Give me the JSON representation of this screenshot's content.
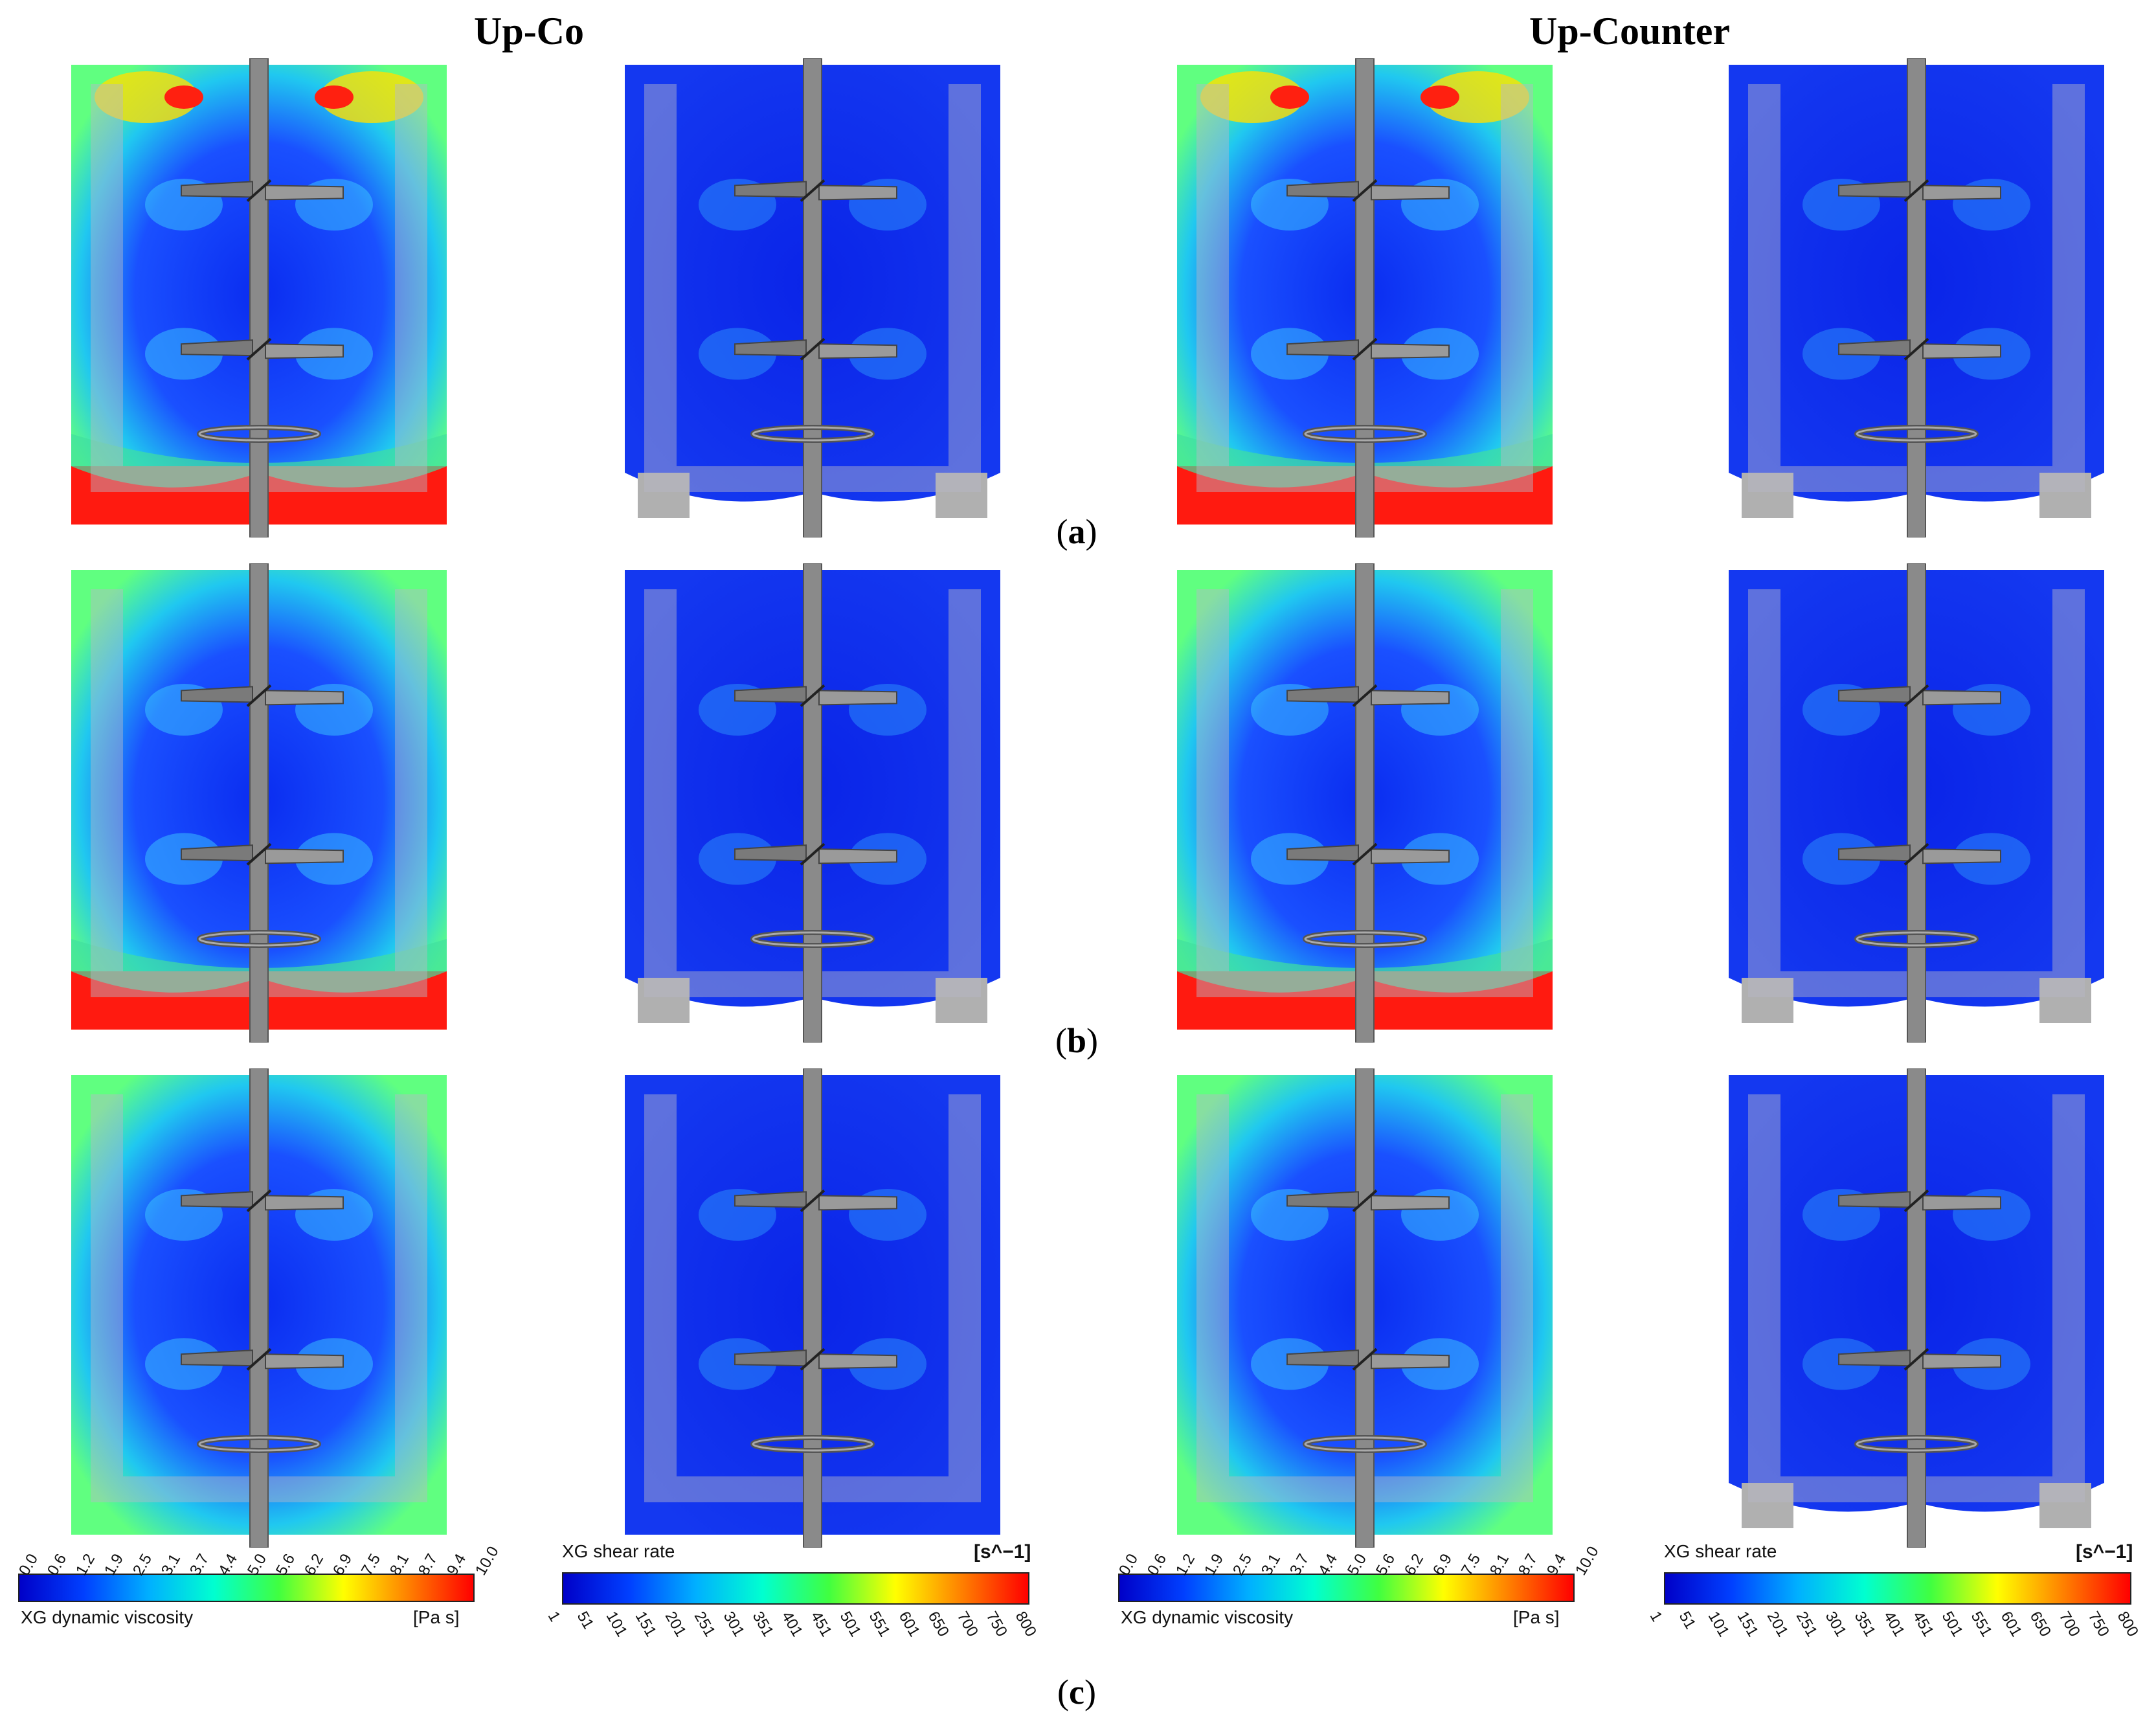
{
  "headers": {
    "left": "Up-Co",
    "right": "Up-Counter"
  },
  "row_labels": [
    "a",
    "b",
    "c"
  ],
  "panels": [
    {
      "row": "a",
      "col": 1,
      "field": "viscosity",
      "tank": "full"
    },
    {
      "row": "a",
      "col": 2,
      "field": "shear",
      "tank": "notched"
    },
    {
      "row": "a",
      "col": 3,
      "field": "viscosity",
      "tank": "full"
    },
    {
      "row": "a",
      "col": 4,
      "field": "shear",
      "tank": "notched"
    },
    {
      "row": "b",
      "col": 1,
      "field": "viscosity",
      "tank": "full"
    },
    {
      "row": "b",
      "col": 2,
      "field": "shear",
      "tank": "notched"
    },
    {
      "row": "b",
      "col": 3,
      "field": "viscosity",
      "tank": "full"
    },
    {
      "row": "b",
      "col": 4,
      "field": "shear",
      "tank": "notched"
    },
    {
      "row": "c",
      "col": 1,
      "field": "viscosity",
      "tank": "full"
    },
    {
      "row": "c",
      "col": 2,
      "field": "shear",
      "tank": "full"
    },
    {
      "row": "c",
      "col": 3,
      "field": "viscosity",
      "tank": "full"
    },
    {
      "row": "c",
      "col": 4,
      "field": "shear",
      "tank": "notched"
    }
  ],
  "colorbars": {
    "viscosity": {
      "title": "XG dynamic viscosity",
      "unit": "[Pa s]",
      "ticks": [
        "0.0",
        "0.6",
        "1.2",
        "1.9",
        "2.5",
        "3.1",
        "3.7",
        "4.4",
        "5.0",
        "5.6",
        "6.2",
        "6.9",
        "7.5",
        "8.1",
        "8.7",
        "9.4",
        "10.0"
      ]
    },
    "shear": {
      "title": "XG shear rate",
      "unit": "[s^−1]",
      "ticks": [
        "1",
        "51",
        "101",
        "151",
        "201",
        "251",
        "301",
        "351",
        "401",
        "451",
        "501",
        "551",
        "601",
        "650",
        "700",
        "750",
        "800"
      ]
    }
  },
  "colors": {
    "scale": [
      "#0000c8",
      "#0040ff",
      "#00b0ff",
      "#00ffd0",
      "#40ff40",
      "#ffff00",
      "#ff8000",
      "#ff0000"
    ],
    "background_field": "#1c3cf0",
    "shaft": "#8a8a8a",
    "baffle_overlay": "#b8b8c8"
  }
}
